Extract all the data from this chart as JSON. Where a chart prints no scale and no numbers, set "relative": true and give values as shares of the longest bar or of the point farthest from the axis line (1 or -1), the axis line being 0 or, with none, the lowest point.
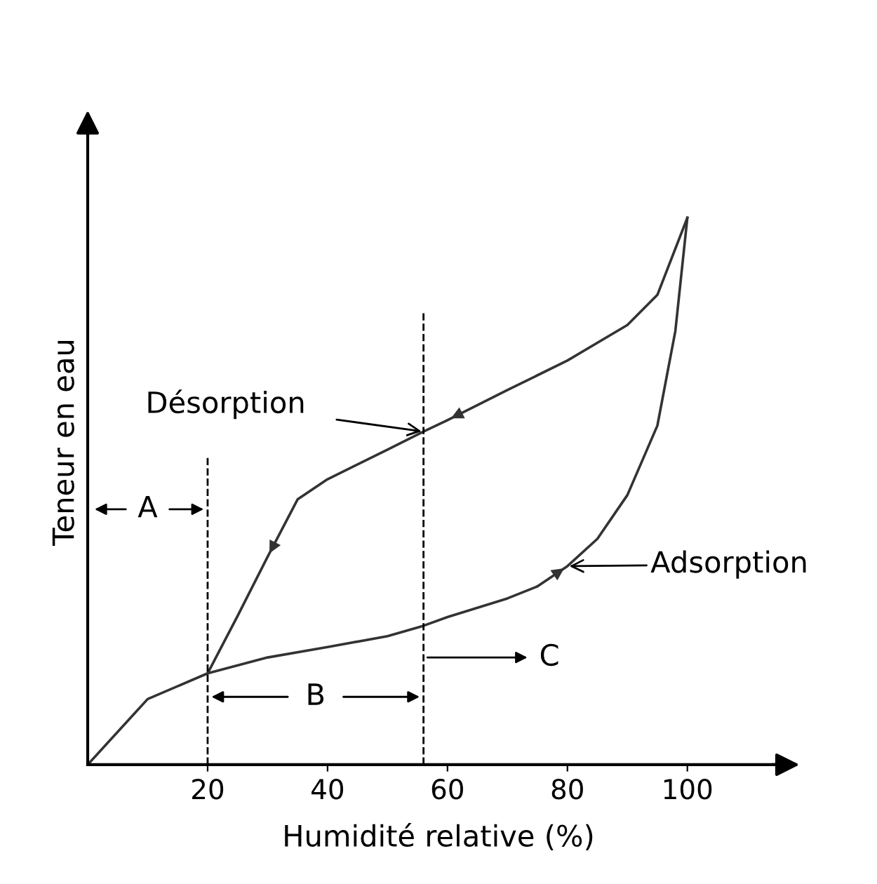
{
  "chart_data": {
    "type": "line",
    "relative": true,
    "xlabel": "Humidité relative (%)",
    "ylabel": "Teneur en eau",
    "xlim": [
      0,
      117
    ],
    "xticks": [
      20,
      40,
      60,
      80,
      100
    ],
    "grid": false,
    "marker": "none",
    "line_style": "solid",
    "series": [
      {
        "name": null,
        "color": "#333333",
        "x": [
          0,
          10,
          20,
          30,
          40,
          50,
          56,
          60,
          70,
          75,
          80,
          85,
          90,
          95,
          98,
          100
        ],
        "values": [
          0,
          0.12,
          0.167,
          0.196,
          0.215,
          0.235,
          0.254,
          0.27,
          0.304,
          0.326,
          0.363,
          0.413,
          0.493,
          0.62,
          0.793,
          1
        ]
      },
      {
        "name": null,
        "color": "#333333",
        "x": [
          100,
          95,
          90,
          80,
          70,
          60,
          56,
          50,
          40,
          35,
          30,
          25,
          20
        ],
        "values": [
          1,
          0.859,
          0.804,
          0.739,
          0.685,
          0.63,
          0.609,
          0.576,
          0.522,
          0.485,
          0.38,
          0.272,
          0.167
        ]
      }
    ],
    "ref_lines": [
      {
        "axis": "x",
        "value": 20,
        "label": null,
        "color": "#000000",
        "line_style": "dashed"
      },
      {
        "axis": "x",
        "value": 56,
        "label": null,
        "color": "#000000",
        "line_style": "dashed"
      }
    ],
    "annotations": [
      {
        "text": "Désorption",
        "x": 56,
        "y": 0.609
      },
      {
        "text": "Adsorption",
        "x": 80,
        "y": 0.363
      },
      "A",
      "B",
      "C"
    ]
  }
}
